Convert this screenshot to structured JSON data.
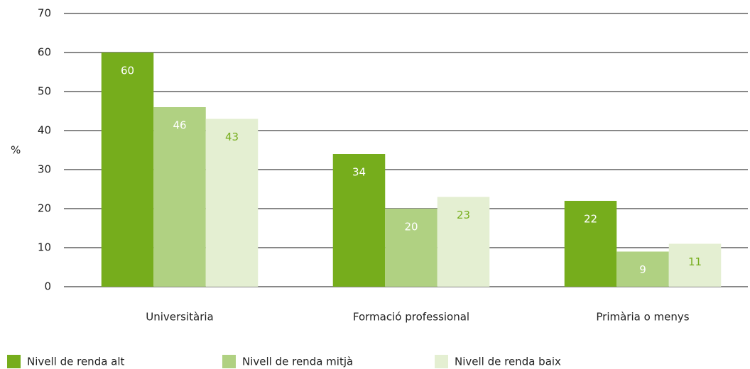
{
  "chart_data": {
    "type": "bar",
    "y_label": "%",
    "categories": [
      "Universitària",
      "Formació professional",
      "Primària o menys"
    ],
    "series": [
      {
        "name": "Nivell de renda alt",
        "color": "#76ad1c",
        "label_color": "#ffffff",
        "values": [
          60,
          34,
          22
        ]
      },
      {
        "name": "Nivell de renda mitjà",
        "color": "#b0d182",
        "label_color": "#ffffff",
        "values": [
          46,
          20,
          9
        ]
      },
      {
        "name": "Nivell de renda baix",
        "color": "#e4efd2",
        "label_color": "#76ad1c",
        "values": [
          43,
          23,
          11
        ]
      }
    ],
    "ylim": [
      0,
      70
    ],
    "yticks": [
      0,
      10,
      20,
      30,
      40,
      50,
      60,
      70
    ],
    "grid": true
  }
}
